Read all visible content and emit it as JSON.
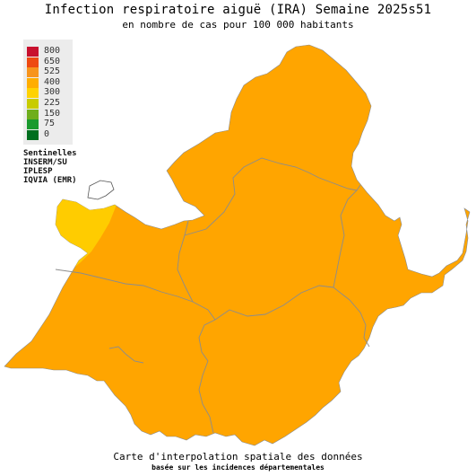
{
  "title": "Infection respiratoire aiguë (IRA) Semaine 2025s51",
  "subtitle": "en nombre de cas pour 100 000 habitants",
  "legend": [
    {
      "label": "800",
      "color": "#c8102e"
    },
    {
      "label": "650",
      "color": "#ee4a12"
    },
    {
      "label": "525",
      "color": "#f7941d"
    },
    {
      "label": "400",
      "color": "#ffad00"
    },
    {
      "label": "300",
      "color": "#ffd200"
    },
    {
      "label": "225",
      "color": "#c8cc00"
    },
    {
      "label": "150",
      "color": "#6fae1d"
    },
    {
      "label": "75",
      "color": "#1a9a2e"
    },
    {
      "label": "0",
      "color": "#006e1e"
    }
  ],
  "sources": [
    "Sentinelles",
    "INSERM/SU",
    "IPLESP",
    "IQVIA (EMR)"
  ],
  "map": {
    "main_color": "#ffa500",
    "highlight_color": "#ffcc00",
    "border_color": "#8c8c8c",
    "enclave_color": "#ffffff"
  },
  "footer": {
    "line1": "Carte d'interpolation spatiale des données",
    "line2": "basée sur les incidences départementales"
  }
}
